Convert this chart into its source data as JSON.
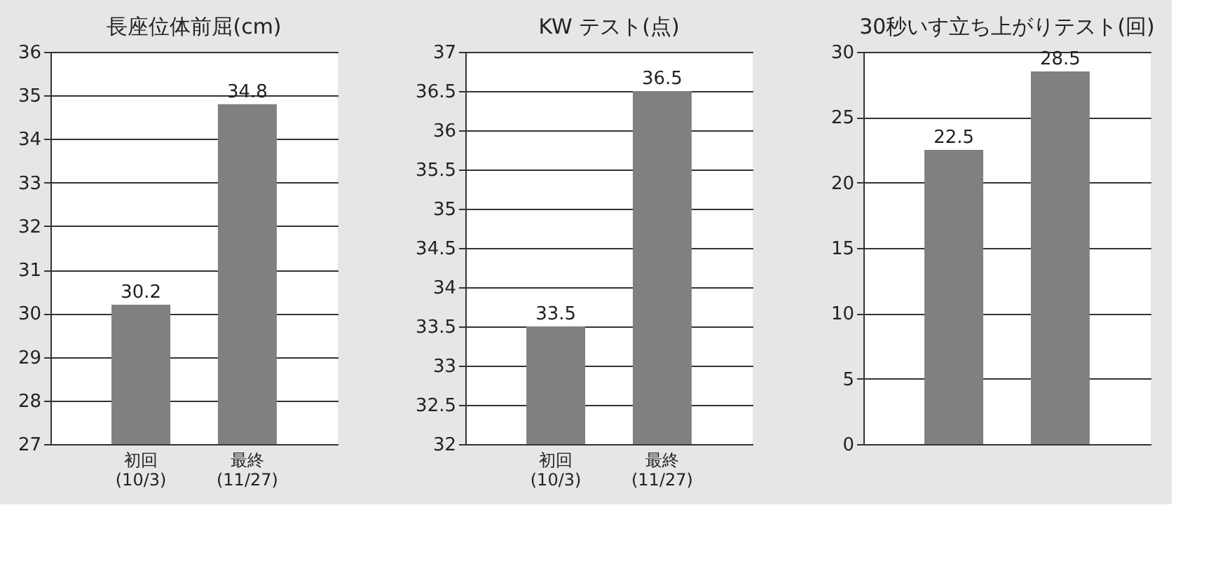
{
  "chart_data": [
    {
      "type": "bar",
      "title": "長座位体前屈(cm)",
      "categories": [
        "初回\n(10/3)",
        "最終\n(11/27)"
      ],
      "values": [
        30.2,
        34.8
      ],
      "color": "#808080",
      "ylim": [
        27,
        36
      ],
      "yticks": [
        27,
        28,
        29,
        30,
        31,
        32,
        33,
        34,
        35,
        36
      ],
      "grid": "y",
      "data_labels": true
    },
    {
      "type": "bar",
      "title": "KW テスト(点)",
      "categories": [
        "初回\n(10/3)",
        "最終\n(11/27)"
      ],
      "values": [
        33.5,
        36.5
      ],
      "color": "#808080",
      "ylim": [
        32,
        37
      ],
      "yticks": [
        32,
        32.5,
        33,
        33.5,
        34,
        34.5,
        35,
        35.5,
        36,
        36.5,
        37
      ],
      "grid": "y",
      "data_labels": true
    },
    {
      "type": "bar",
      "title": "30秒いす立ち上がりテスト(回)",
      "categories": [
        null,
        null
      ],
      "values": [
        22.5,
        28.5
      ],
      "color": "#808080",
      "ylim": [
        0,
        30
      ],
      "yticks": [
        0,
        5,
        10,
        15,
        20,
        25,
        30
      ],
      "grid": "y",
      "data_labels": true,
      "tick_labels": "y"
    }
  ]
}
